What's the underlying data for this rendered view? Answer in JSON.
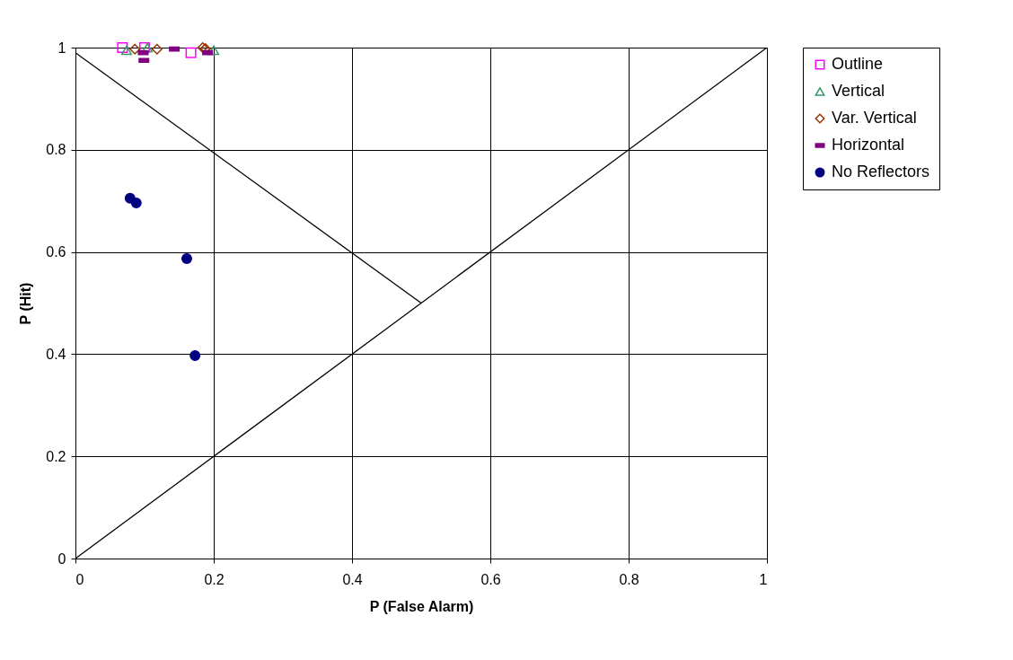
{
  "chart_data": {
    "type": "scatter",
    "xlabel": "P (False Alarm)",
    "ylabel": "P (Hit)",
    "xlim": [
      0,
      1
    ],
    "ylim": [
      0,
      1
    ],
    "xticks": [
      0,
      0.2,
      0.4,
      0.6,
      0.8,
      1
    ],
    "yticks": [
      0,
      0.2,
      0.4,
      0.6,
      0.8,
      1
    ],
    "grid": true,
    "legend": "right",
    "series": [
      {
        "name": "Outline",
        "color": "#ff00ff",
        "marker": "square",
        "x": [
          0.068,
          0.1,
          0.167
        ],
        "values": [
          1.0,
          1.0,
          0.99
        ]
      },
      {
        "name": "Vertical",
        "color": "#339966",
        "marker": "triangle",
        "x": [
          0.074,
          0.104,
          0.2
        ],
        "values": [
          0.995,
          1.0,
          0.995
        ]
      },
      {
        "name": "Var. Vertical",
        "color": "#993300",
        "marker": "diamond",
        "x": [
          0.086,
          0.118,
          0.184,
          0.188
        ],
        "values": [
          0.997,
          0.997,
          1.0,
          0.998
        ]
      },
      {
        "name": "Horizontal",
        "color": "#800080",
        "x": [
          0.098,
          0.099,
          0.143,
          0.191
        ],
        "values": [
          0.99,
          0.975,
          0.997,
          0.99
        ]
      },
      {
        "name": "No Reflectors",
        "color": "#000080",
        "marker": "circle",
        "x": [
          0.079,
          0.088,
          0.161,
          0.173
        ],
        "values": [
          0.705,
          0.696,
          0.587,
          0.397
        ]
      },
      {
        "type": "line",
        "color": "#000000",
        "x": [
          0,
          1
        ],
        "values": [
          0,
          1
        ]
      },
      {
        "type": "line",
        "color": "#000000",
        "x": [
          0,
          0.5
        ],
        "values": [
          0.99,
          0.5
        ]
      }
    ]
  }
}
